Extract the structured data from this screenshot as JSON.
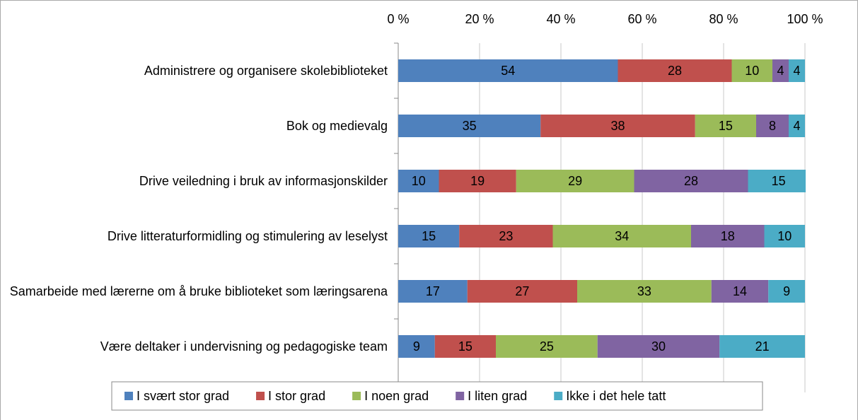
{
  "chart_data": {
    "type": "stacked_bar_horizontal",
    "categories": [
      "Administrere og organisere skolebiblioteket",
      "Bok og medievalg",
      "Drive veiledning i bruk av informasjonskilder",
      "Drive litteraturformidling og stimulering av leselyst",
      "Samarbeide med lærerne om å bruke biblioteket som læringsarena",
      "Være deltaker i undervisning og pedagogiske team"
    ],
    "series": [
      {
        "name": "I svært stor grad",
        "color": "#4f81bd",
        "values": [
          54,
          35,
          10,
          15,
          17,
          9
        ]
      },
      {
        "name": "I stor grad",
        "color": "#c0504d",
        "values": [
          28,
          38,
          19,
          23,
          27,
          15
        ]
      },
      {
        "name": "I noen grad",
        "color": "#9bbb59",
        "values": [
          10,
          15,
          29,
          34,
          33,
          25
        ]
      },
      {
        "name": "I liten grad",
        "color": "#8064a2",
        "values": [
          4,
          8,
          28,
          18,
          14,
          30
        ]
      },
      {
        "name": "Ikke i det hele tatt",
        "color": "#4bacc6",
        "values": [
          4,
          4,
          15,
          10,
          9,
          21
        ]
      }
    ],
    "xlim": [
      0,
      100
    ],
    "xticks": [
      {
        "value": 0,
        "label": "0 %"
      },
      {
        "value": 20,
        "label": "20 %"
      },
      {
        "value": 40,
        "label": "40 %"
      },
      {
        "value": 60,
        "label": "60 %"
      },
      {
        "value": 80,
        "label": "80 %"
      },
      {
        "value": 100,
        "label": "100 %"
      }
    ],
    "grid": true,
    "legend": "bottom"
  }
}
